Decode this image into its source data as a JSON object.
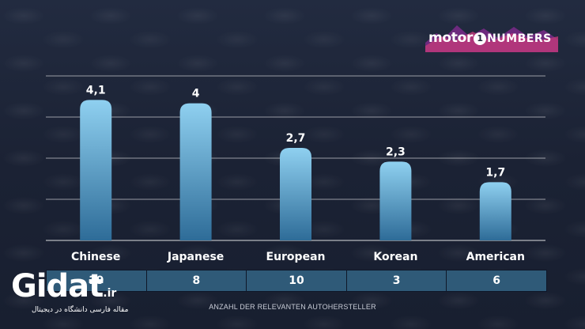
{
  "logo": {
    "part1": "motor",
    "part2": "1",
    "part3": "NUMBERS"
  },
  "colors": {
    "background": "#1c2438",
    "bar_top": "#8fd0f0",
    "bar_bottom": "#2e6c98",
    "grid": "#ffffff",
    "table_cell": "#2f5a78"
  },
  "chart_data": {
    "type": "bar",
    "categories": [
      "Chinese",
      "Japanese",
      "European",
      "Korean",
      "American"
    ],
    "values": [
      4.1,
      4,
      2.7,
      2.3,
      1.7
    ],
    "value_labels": [
      "4,1",
      "4",
      "2,7",
      "2,3",
      "1,7"
    ],
    "ylim": [
      0,
      4.8
    ],
    "grid_step": 1.2,
    "grid": true,
    "legend": "none"
  },
  "table": {
    "counts": [
      "19",
      "8",
      "10",
      "3",
      "6"
    ],
    "caption": "ANZAHL DER RELEVANTEN AUTOHERSTELLER"
  },
  "watermark": {
    "brand": "Gidat",
    "tld": ".ir",
    "tagline": "مقاله فارسی دانشگاه در دیجیتال"
  }
}
